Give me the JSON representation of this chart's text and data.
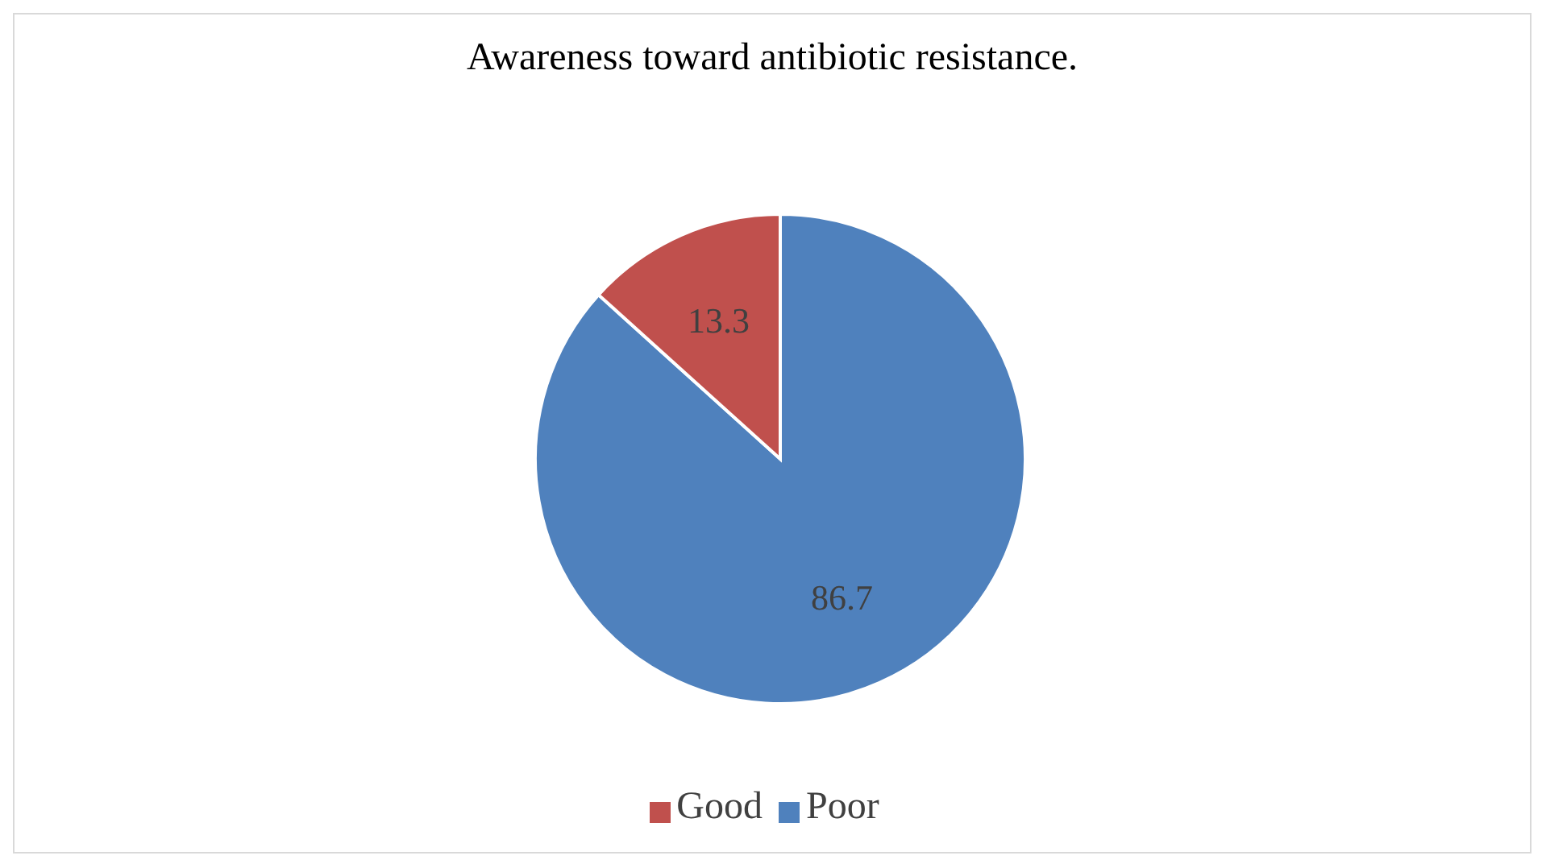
{
  "chart_data": {
    "type": "pie",
    "title": "Awareness toward antibiotic resistance.",
    "categories": [
      "Poor",
      "Good"
    ],
    "values": [
      86.7,
      13.3
    ],
    "colors": [
      "#4f81bd",
      "#c0504d"
    ],
    "data_labels": true,
    "legend": "bottom"
  }
}
